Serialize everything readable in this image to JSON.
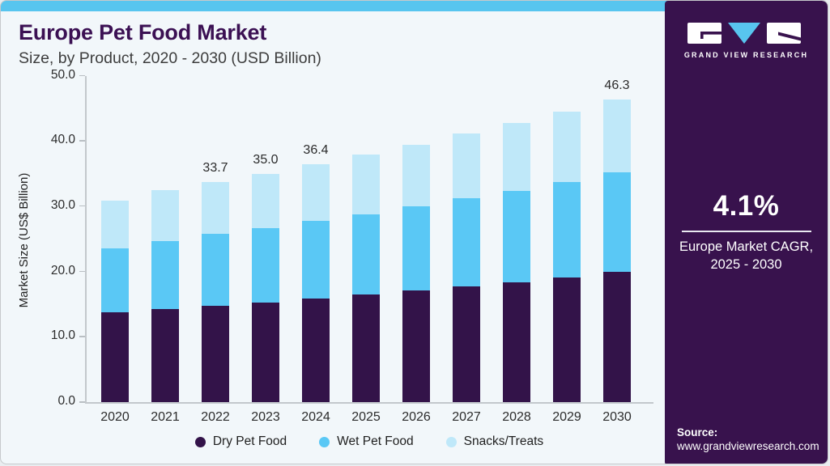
{
  "header": {
    "title": "Europe Pet Food Market",
    "subtitle": "Size, by Product, 2020 - 2030 (USD Billion)"
  },
  "sidebar": {
    "logo_text": "GRAND VIEW RESEARCH",
    "cagr_value": "4.1%",
    "cagr_label_line1": "Europe Market CAGR,",
    "cagr_label_line2": "2025 - 2030",
    "source_label": "Source:",
    "source_url": "www.grandviewresearch.com"
  },
  "colors": {
    "accent_strip": "#58c5ef",
    "sidebar_background": "#38124d",
    "title_purple": "#3b1053",
    "chart_background": "#f2f7fa"
  },
  "chart_data": {
    "type": "bar",
    "stacked": true,
    "title": "Europe Pet Food Market Size, by Product, 2020 - 2030 (USD Billion)",
    "xlabel": "",
    "ylabel": "Market Size (US$ Billion)",
    "ylim": [
      0,
      50
    ],
    "ytick_step": 10,
    "ytick_labels": [
      "0.0",
      "10.0",
      "20.0",
      "30.0",
      "40.0",
      "50.0"
    ],
    "grid": false,
    "legend_position": "bottom",
    "categories": [
      "2020",
      "2021",
      "2022",
      "2023",
      "2024",
      "2025",
      "2026",
      "2027",
      "2028",
      "2029",
      "2030"
    ],
    "series": [
      {
        "name": "Dry Pet Food",
        "color": "#331349",
        "values": [
          13.7,
          14.3,
          14.8,
          15.3,
          15.9,
          16.5,
          17.1,
          17.7,
          18.4,
          19.1,
          19.9
        ]
      },
      {
        "name": "Wet Pet Food",
        "color": "#5ac8f5",
        "values": [
          9.8,
          10.4,
          11.0,
          11.4,
          11.8,
          12.3,
          12.9,
          13.5,
          14.0,
          14.6,
          15.3
        ]
      },
      {
        "name": "Snacks/Treats",
        "color": "#bfe8f9",
        "values": [
          7.3,
          7.8,
          7.9,
          8.3,
          8.7,
          9.1,
          9.4,
          9.9,
          10.3,
          10.8,
          11.1
        ]
      }
    ],
    "totals": [
      30.8,
      32.5,
      33.7,
      35.0,
      36.4,
      37.9,
      39.4,
      41.1,
      42.7,
      44.5,
      46.3
    ],
    "totals_labels": {
      "2022": "33.7",
      "2023": "35.0",
      "2024": "36.4",
      "2030": "46.3"
    }
  }
}
